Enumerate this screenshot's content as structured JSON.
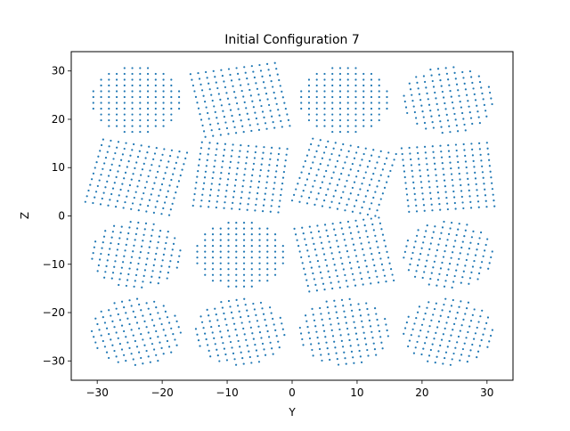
{
  "chart_data": {
    "type": "scatter",
    "title": "Initial Configuration 7",
    "xlabel": "Y",
    "ylabel": "Z",
    "xlim": [
      -34,
      34
    ],
    "ylim": [
      -34,
      34
    ],
    "xticks": [
      -30,
      -20,
      -10,
      0,
      10,
      20,
      30
    ],
    "yticks": [
      -30,
      -20,
      -10,
      0,
      10,
      20,
      30
    ],
    "grid": false,
    "legend": "none",
    "marker_color": "#1f77b4",
    "layout": {
      "block_centers_y": [
        -24,
        -8,
        8,
        24
      ],
      "block_centers_z": [
        -24,
        -8,
        8,
        24
      ],
      "grid_points_per_side": 12,
      "grid_spacing": 1.2,
      "block_rotations_deg": [
        [
          0,
          10,
          0,
          8
        ],
        [
          -12,
          -6,
          -14,
          5
        ],
        [
          -8,
          0,
          10,
          -10
        ],
        [
          14,
          10,
          8,
          -12
        ]
      ],
      "block_shapes": [
        [
          "circle",
          "square",
          "circle",
          "circle"
        ],
        [
          "square",
          "square",
          "square",
          "square"
        ],
        [
          "circle",
          "circle",
          "square",
          "circle"
        ],
        [
          "circle",
          "circle",
          "circle",
          "circle"
        ]
      ]
    }
  }
}
